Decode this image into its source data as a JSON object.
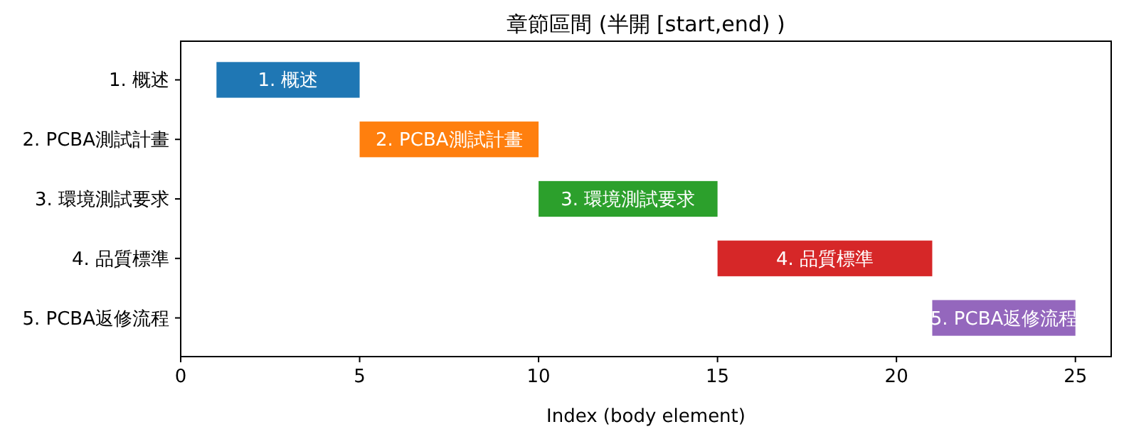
{
  "chart_data": {
    "type": "bar",
    "orientation": "horizontal",
    "title": "章節區間 (半開 [start,end) )",
    "xlabel": "Index (body element)",
    "categories": [
      "1. 概述",
      "2. PCBA測試計畫",
      "3. 環境測試要求",
      "4. 品質標準",
      "5. PCBA返修流程"
    ],
    "base": [
      1,
      5,
      10,
      15,
      21
    ],
    "values": [
      4,
      5,
      5,
      6,
      4
    ],
    "colors": [
      "#1f77b4",
      "#ff7f0e",
      "#2ca02c",
      "#d62728",
      "#9467bd"
    ],
    "xlim": [
      0,
      26
    ],
    "xticks": [
      0,
      5,
      10,
      15,
      20,
      25
    ],
    "annotations": [
      "1. 概述",
      "2. PCBA測試計畫",
      "3. 環境測試要求",
      "4. 品質標準",
      "5. PCBA返修流程"
    ],
    "grid": false
  }
}
